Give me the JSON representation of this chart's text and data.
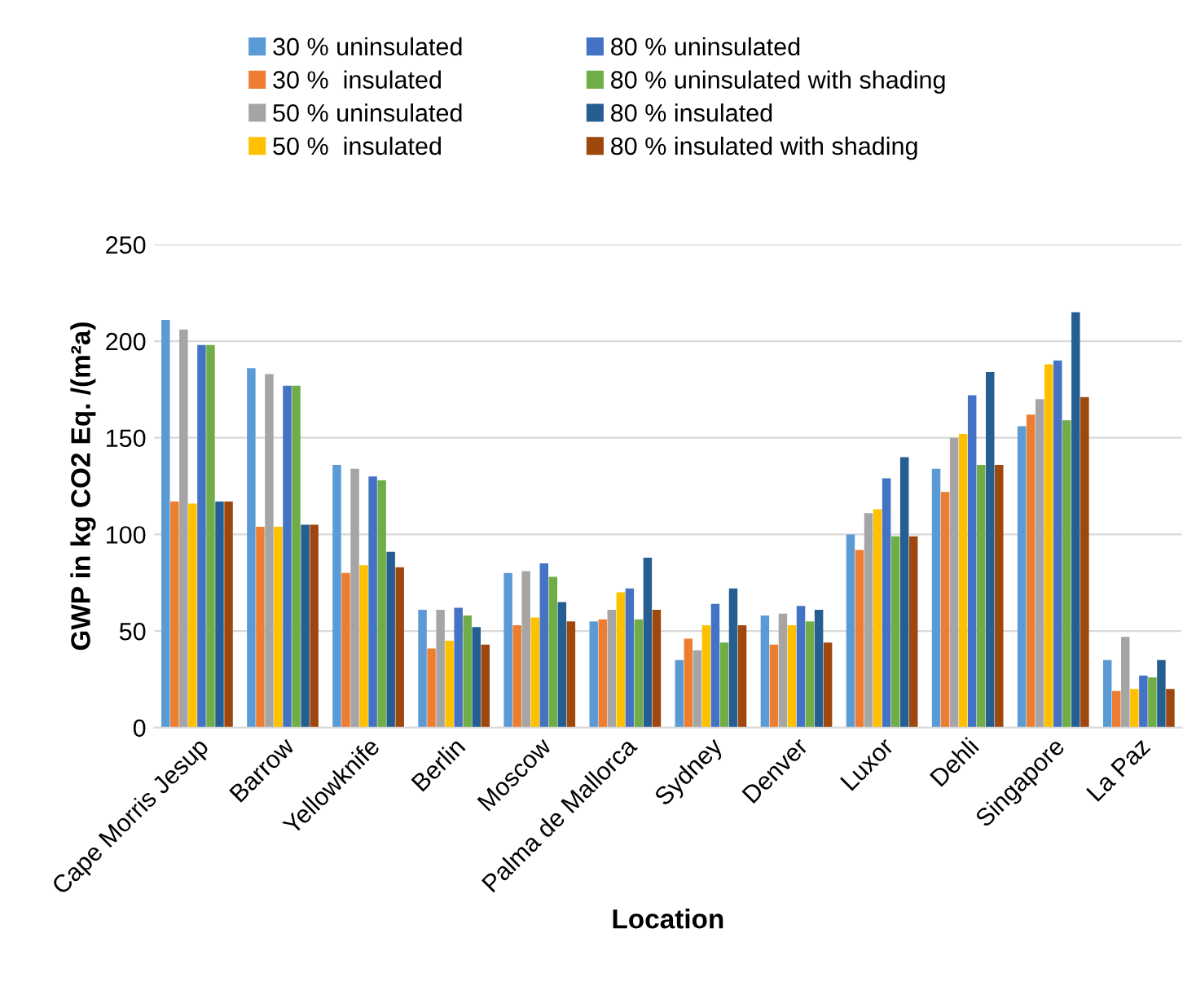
{
  "chart_data": {
    "type": "bar",
    "xlabel": "Location",
    "ylabel": "GWP in kg CO2 Eq. /(m²a)",
    "categories": [
      "Cape Morris Jesup",
      "Barrow",
      "Yellowknife",
      "Berlin",
      "Moscow",
      "Palma de Mallorca",
      "Sydney",
      "Denver",
      "Luxor",
      "Dehli",
      "Singapore",
      "La Paz"
    ],
    "series": [
      {
        "name": "30 % uninsulated",
        "color": "#5b9bd5",
        "values": [
          211,
          186,
          136,
          61,
          80,
          55,
          35,
          58,
          100,
          134,
          156,
          35
        ]
      },
      {
        "name": "30 %  insulated",
        "color": "#ed7d31",
        "values": [
          117,
          104,
          80,
          41,
          53,
          56,
          46,
          43,
          92,
          122,
          162,
          19
        ]
      },
      {
        "name": "50 % uninsulated",
        "color": "#a5a5a5",
        "values": [
          206,
          183,
          134,
          61,
          81,
          61,
          40,
          59,
          111,
          150,
          170,
          47
        ]
      },
      {
        "name": "50 %  insulated",
        "color": "#ffc000",
        "values": [
          116,
          104,
          84,
          45,
          57,
          70,
          53,
          53,
          113,
          152,
          188,
          20
        ]
      },
      {
        "name": "80 % uninsulated",
        "color": "#4472c4",
        "values": [
          198,
          177,
          130,
          62,
          85,
          72,
          64,
          63,
          129,
          172,
          190,
          27
        ]
      },
      {
        "name": "80 % uninsulated with shading",
        "color": "#70ad47",
        "values": [
          198,
          177,
          128,
          58,
          78,
          56,
          44,
          55,
          99,
          136,
          159,
          26
        ]
      },
      {
        "name": "80 % insulated",
        "color": "#255e91",
        "values": [
          117,
          105,
          91,
          52,
          65,
          88,
          72,
          61,
          140,
          184,
          215,
          35
        ]
      },
      {
        "name": "80 % insulated with shading",
        "color": "#9e480e",
        "values": [
          117,
          105,
          83,
          43,
          55,
          61,
          53,
          44,
          99,
          136,
          171,
          20
        ]
      }
    ],
    "ylim": [
      0,
      250
    ],
    "yticks": [
      0,
      50,
      100,
      150,
      200,
      250
    ],
    "grid": "y",
    "legend": "top"
  }
}
